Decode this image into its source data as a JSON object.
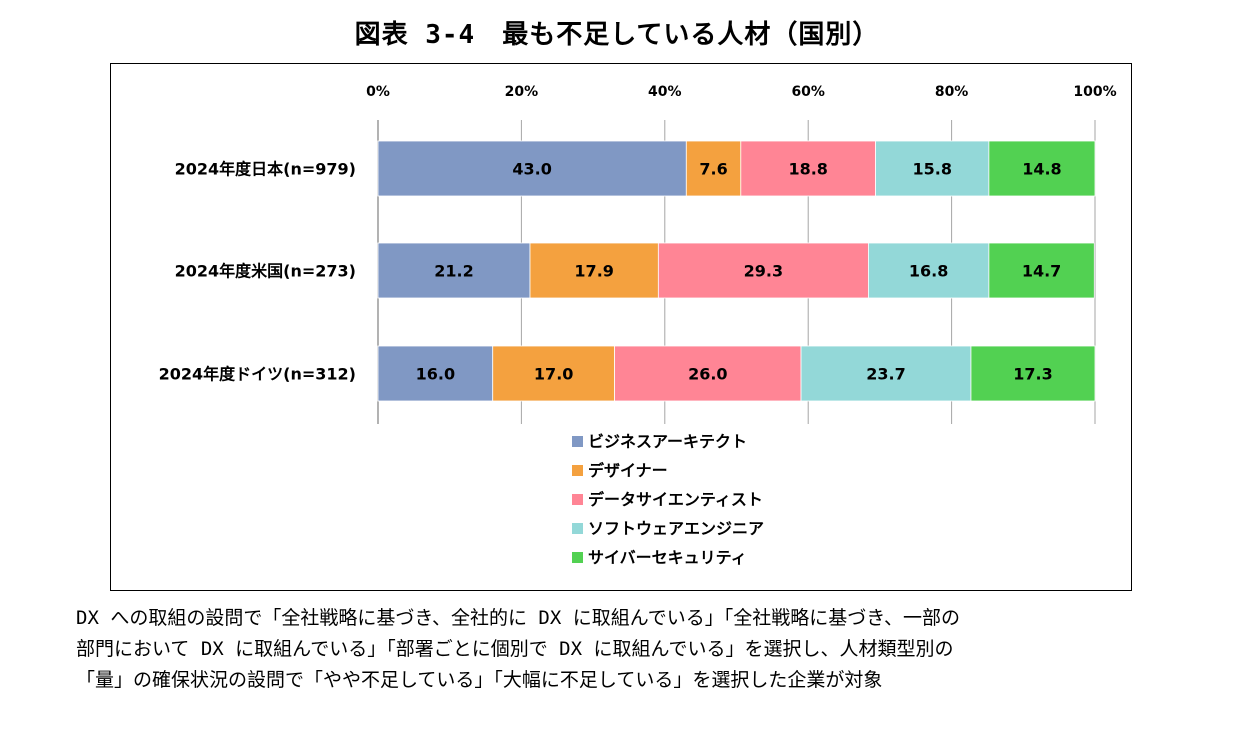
{
  "title": "図表 3-4　最も不足している人材（国別）",
  "chart_data": {
    "type": "bar",
    "orientation": "horizontal",
    "stacked": "percent",
    "categories": [
      "2024年度日本(n=979)",
      "2024年度米国(n=273)",
      "2024年度ドイツ(n=312)"
    ],
    "series": [
      {
        "name": "ビジネスアーキテクト",
        "values": [
          43.0,
          21.2,
          16.0
        ],
        "color": "#8098C4"
      },
      {
        "name": "デザイナー",
        "values": [
          7.6,
          17.9,
          17.0
        ],
        "color": "#F4A13F"
      },
      {
        "name": "データサイエンティスト",
        "values": [
          18.8,
          29.3,
          26.0
        ],
        "color": "#FF8595"
      },
      {
        "name": "ソフトウェアエンジニア",
        "values": [
          15.8,
          16.8,
          23.7
        ],
        "color": "#93D8D8"
      },
      {
        "name": "サイバーセキュリティ",
        "values": [
          14.8,
          14.7,
          17.3
        ],
        "color": "#52D152"
      }
    ],
    "xticks": [
      "0%",
      "20%",
      "40%",
      "60%",
      "80%",
      "100%"
    ],
    "xlim": [
      0,
      100
    ],
    "grid": true,
    "legend_position": "bottom"
  },
  "notes": [
    "DX への取組の設問で「全社戦略に基づき、全社的に DX に取組んでいる」「全社戦略に基づき、一部の",
    "部門において DX に取組んでいる」「部署ごとに個別で DX に取組んでいる」を選択し、人材類型別の",
    "「量」の確保状況の設問で「やや不足している」「大幅に不足している」を選択した企業が対象"
  ]
}
